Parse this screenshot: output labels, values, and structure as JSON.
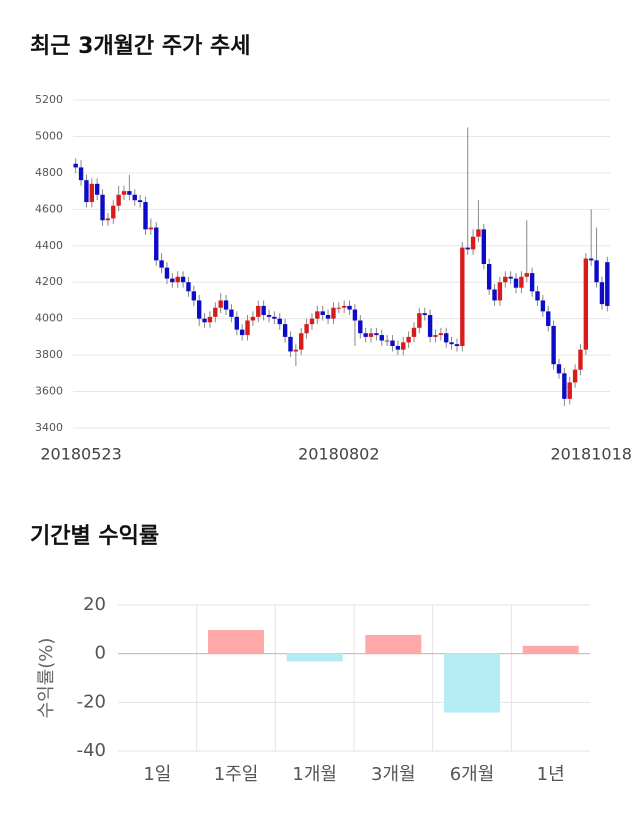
{
  "chart_data": [
    {
      "type": "candlestick",
      "title": "최근 3개월간 주가 추세",
      "categories": [
        null,
        "20180523",
        null,
        null,
        null,
        null,
        null,
        null,
        null,
        null,
        null,
        null,
        null,
        null,
        null,
        null,
        null,
        null,
        null,
        null,
        null,
        null,
        null,
        null,
        null,
        null,
        null,
        null,
        null,
        null,
        null,
        null,
        null,
        null,
        null,
        null,
        null,
        null,
        null,
        null,
        null,
        null,
        null,
        null,
        null,
        null,
        null,
        null,
        null,
        "20180802",
        null,
        null,
        null,
        null,
        null,
        null,
        null,
        null,
        null,
        null,
        null,
        null,
        null,
        null,
        null,
        null,
        null,
        null,
        null,
        null,
        null,
        null,
        null,
        null,
        null,
        null,
        null,
        null,
        null,
        null,
        null,
        null,
        null,
        null,
        null,
        null,
        null,
        null,
        null,
        null,
        null,
        null,
        null,
        null,
        null,
        null,
        "20181018",
        null,
        null,
        null
      ],
      "open": [
        4850,
        4830,
        4760,
        4640,
        4740,
        4680,
        4540,
        4550,
        4620,
        4680,
        4700,
        4680,
        4650,
        4640,
        4490,
        4500,
        4320,
        4280,
        4220,
        4200,
        4230,
        4200,
        4150,
        4100,
        4000,
        3980,
        4010,
        4060,
        4100,
        4050,
        4010,
        3940,
        3910,
        3990,
        4010,
        4070,
        4020,
        4010,
        4000,
        3970,
        3900,
        3820,
        3830,
        3920,
        3970,
        4000,
        4040,
        4020,
        4000,
        4060,
        4060,
        4070,
        4050,
        3990,
        3920,
        3900,
        3920,
        3910,
        3880,
        3880,
        3850,
        3830,
        3870,
        3900,
        3950,
        4030,
        4020,
        3900,
        3910,
        3920,
        3870,
        3860,
        3850,
        4390,
        4380,
        4450,
        4490,
        4300,
        4160,
        4100,
        4200,
        4230,
        4220,
        4170,
        4230,
        4250,
        4150,
        4100,
        4040,
        3960,
        3750,
        3700,
        3560,
        3650,
        3720,
        3830,
        4330,
        4320,
        4200,
        4310
      ],
      "high": [
        4880,
        4870,
        4790,
        4770,
        4770,
        4710,
        4580,
        4650,
        4730,
        4730,
        4790,
        4710,
        4680,
        4670,
        4550,
        4530,
        4360,
        4310,
        4250,
        4260,
        4260,
        4230,
        4180,
        4130,
        4030,
        4040,
        4090,
        4140,
        4130,
        4080,
        4040,
        3970,
        4020,
        4040,
        4100,
        4100,
        4050,
        4040,
        4030,
        4000,
        3930,
        3860,
        3950,
        4000,
        4030,
        4070,
        4070,
        4050,
        4090,
        4090,
        4100,
        4100,
        4080,
        4020,
        3950,
        3950,
        3950,
        3940,
        3910,
        3910,
        3880,
        3900,
        3930,
        3980,
        4060,
        4060,
        4050,
        3940,
        3950,
        3950,
        3900,
        3890,
        4420,
        5050,
        4490,
        4650,
        4520,
        4330,
        4190,
        4230,
        4260,
        4260,
        4250,
        4260,
        4540,
        4280,
        4180,
        4130,
        4070,
        3990,
        3780,
        3730,
        3680,
        3750,
        3860,
        4360,
        4600,
        4500,
        4230,
        4340
      ],
      "low": [
        4800,
        4730,
        4610,
        4610,
        4650,
        4510,
        4510,
        4520,
        4590,
        4650,
        4650,
        4620,
        4610,
        4460,
        4460,
        4290,
        4250,
        4190,
        4170,
        4170,
        4170,
        4120,
        4070,
        3960,
        3950,
        3950,
        3980,
        4030,
        4020,
        3980,
        3910,
        3880,
        3880,
        3960,
        3980,
        3990,
        3980,
        3970,
        3940,
        3870,
        3790,
        3740,
        3800,
        3890,
        3940,
        3970,
        3990,
        3970,
        3970,
        4030,
        4030,
        4020,
        3850,
        3890,
        3870,
        3870,
        3880,
        3850,
        3850,
        3820,
        3800,
        3800,
        3840,
        3870,
        3920,
        3990,
        3870,
        3870,
        3880,
        3840,
        3830,
        3820,
        3820,
        4350,
        4350,
        4420,
        4270,
        4130,
        4070,
        4070,
        4170,
        4190,
        4140,
        4140,
        4200,
        4120,
        4070,
        4010,
        3930,
        3720,
        3670,
        3520,
        3530,
        3620,
        3690,
        3800,
        4290,
        4170,
        4050,
        4040
      ],
      "close": [
        4830,
        4760,
        4640,
        4740,
        4680,
        4540,
        4550,
        4620,
        4680,
        4700,
        4680,
        4650,
        4640,
        4490,
        4500,
        4320,
        4280,
        4220,
        4200,
        4230,
        4200,
        4150,
        4100,
        4000,
        3980,
        4010,
        4060,
        4100,
        4050,
        4010,
        3940,
        3910,
        3990,
        4010,
        4070,
        4020,
        4010,
        4000,
        3970,
        3900,
        3820,
        3830,
        3920,
        3970,
        4000,
        4040,
        4020,
        4000,
        4060,
        4060,
        4070,
        4050,
        3990,
        3920,
        3900,
        3920,
        3910,
        3880,
        3880,
        3850,
        3830,
        3870,
        3900,
        3950,
        4030,
        4020,
        3900,
        3910,
        3920,
        3870,
        3860,
        3850,
        4390,
        4380,
        4450,
        4490,
        4300,
        4160,
        4100,
        4200,
        4230,
        4220,
        4170,
        4230,
        4250,
        4150,
        4100,
        4040,
        3960,
        3750,
        3700,
        3560,
        3650,
        3720,
        3830,
        4330,
        4320,
        4200,
        4080,
        4070
      ],
      "up_color": "#d81b1b",
      "down_color": "#0c0cc8",
      "ylim": [
        3400,
        5200
      ],
      "yticks": [
        3400,
        3600,
        3800,
        4000,
        4200,
        4400,
        4600,
        4800,
        5000,
        5200
      ],
      "grid": true
    },
    {
      "type": "bar",
      "title": "기간별 수익률",
      "ylabel": "수익률(%)",
      "categories": [
        "1일",
        "1주일",
        "1개월",
        "3개월",
        "6개월",
        "1년"
      ],
      "values": [
        0,
        9.5,
        -3,
        7.5,
        -24,
        3
      ],
      "positive_color": "#ffa8a8",
      "negative_color": "#b4ebf4",
      "ylim": [
        -40,
        20
      ],
      "yticks": [
        -40,
        -20,
        0,
        20
      ],
      "grid": true
    }
  ]
}
